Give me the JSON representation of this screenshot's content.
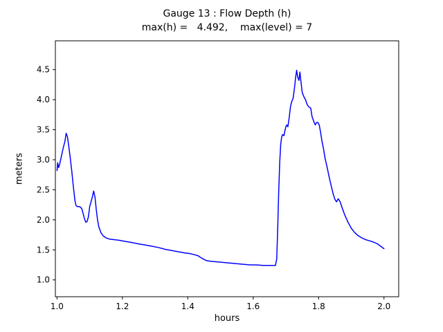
{
  "chart_data": {
    "type": "line",
    "title": "Gauge 13 : Flow Depth (h)",
    "subtitle": "max(h) =   4.492,    max(level) = 7",
    "xlabel": "hours",
    "ylabel": "meters",
    "max_h": 4.492,
    "max_level": 7,
    "xlim": [
      0.995,
      2.045
    ],
    "ylim": [
      0.72,
      4.98
    ],
    "xticks": [
      1.0,
      1.2,
      1.4,
      1.6,
      1.8,
      2.0
    ],
    "yticks": [
      1.0,
      1.5,
      2.0,
      2.5,
      3.0,
      3.5,
      4.0,
      4.5
    ],
    "grid": false,
    "legend": "none",
    "line_color": "#0000ff",
    "axis_color": "#000000",
    "series": [
      {
        "name": "h (flow depth)",
        "points": [
          [
            1.0,
            2.82
          ],
          [
            1.002,
            2.95
          ],
          [
            1.005,
            2.87
          ],
          [
            1.008,
            2.92
          ],
          [
            1.012,
            3.02
          ],
          [
            1.016,
            3.12
          ],
          [
            1.02,
            3.22
          ],
          [
            1.024,
            3.3
          ],
          [
            1.028,
            3.44
          ],
          [
            1.032,
            3.38
          ],
          [
            1.036,
            3.22
          ],
          [
            1.04,
            3.05
          ],
          [
            1.045,
            2.82
          ],
          [
            1.05,
            2.55
          ],
          [
            1.055,
            2.32
          ],
          [
            1.058,
            2.24
          ],
          [
            1.062,
            2.22
          ],
          [
            1.068,
            2.22
          ],
          [
            1.072,
            2.21
          ],
          [
            1.076,
            2.18
          ],
          [
            1.08,
            2.1
          ],
          [
            1.084,
            2.02
          ],
          [
            1.088,
            1.96
          ],
          [
            1.092,
            1.97
          ],
          [
            1.096,
            2.05
          ],
          [
            1.1,
            2.22
          ],
          [
            1.104,
            2.3
          ],
          [
            1.108,
            2.38
          ],
          [
            1.112,
            2.48
          ],
          [
            1.116,
            2.38
          ],
          [
            1.12,
            2.18
          ],
          [
            1.124,
            2.0
          ],
          [
            1.128,
            1.88
          ],
          [
            1.135,
            1.78
          ],
          [
            1.142,
            1.73
          ],
          [
            1.15,
            1.7
          ],
          [
            1.16,
            1.68
          ],
          [
            1.175,
            1.67
          ],
          [
            1.19,
            1.66
          ],
          [
            1.21,
            1.64
          ],
          [
            1.23,
            1.62
          ],
          [
            1.25,
            1.6
          ],
          [
            1.27,
            1.58
          ],
          [
            1.29,
            1.56
          ],
          [
            1.31,
            1.54
          ],
          [
            1.33,
            1.51
          ],
          [
            1.35,
            1.49
          ],
          [
            1.37,
            1.47
          ],
          [
            1.39,
            1.45
          ],
          [
            1.405,
            1.44
          ],
          [
            1.42,
            1.42
          ],
          [
            1.432,
            1.4
          ],
          [
            1.44,
            1.37
          ],
          [
            1.45,
            1.34
          ],
          [
            1.458,
            1.32
          ],
          [
            1.47,
            1.31
          ],
          [
            1.49,
            1.3
          ],
          [
            1.51,
            1.29
          ],
          [
            1.53,
            1.28
          ],
          [
            1.55,
            1.27
          ],
          [
            1.57,
            1.26
          ],
          [
            1.59,
            1.25
          ],
          [
            1.61,
            1.25
          ],
          [
            1.63,
            1.24
          ],
          [
            1.65,
            1.24
          ],
          [
            1.668,
            1.24
          ],
          [
            1.672,
            1.35
          ],
          [
            1.675,
            1.85
          ],
          [
            1.678,
            2.45
          ],
          [
            1.681,
            2.95
          ],
          [
            1.684,
            3.25
          ],
          [
            1.687,
            3.38
          ],
          [
            1.69,
            3.42
          ],
          [
            1.694,
            3.4
          ],
          [
            1.697,
            3.48
          ],
          [
            1.7,
            3.55
          ],
          [
            1.703,
            3.58
          ],
          [
            1.706,
            3.55
          ],
          [
            1.71,
            3.7
          ],
          [
            1.714,
            3.88
          ],
          [
            1.718,
            3.97
          ],
          [
            1.722,
            4.02
          ],
          [
            1.726,
            4.18
          ],
          [
            1.73,
            4.38
          ],
          [
            1.733,
            4.49
          ],
          [
            1.736,
            4.38
          ],
          [
            1.74,
            4.32
          ],
          [
            1.743,
            4.46
          ],
          [
            1.746,
            4.3
          ],
          [
            1.75,
            4.12
          ],
          [
            1.755,
            4.05
          ],
          [
            1.76,
            4.0
          ],
          [
            1.765,
            3.92
          ],
          [
            1.77,
            3.88
          ],
          [
            1.776,
            3.86
          ],
          [
            1.78,
            3.72
          ],
          [
            1.785,
            3.64
          ],
          [
            1.79,
            3.58
          ],
          [
            1.794,
            3.62
          ],
          [
            1.798,
            3.62
          ],
          [
            1.802,
            3.58
          ],
          [
            1.806,
            3.46
          ],
          [
            1.81,
            3.32
          ],
          [
            1.815,
            3.18
          ],
          [
            1.82,
            3.02
          ],
          [
            1.826,
            2.88
          ],
          [
            1.832,
            2.72
          ],
          [
            1.838,
            2.58
          ],
          [
            1.844,
            2.44
          ],
          [
            1.85,
            2.34
          ],
          [
            1.855,
            2.3
          ],
          [
            1.86,
            2.35
          ],
          [
            1.866,
            2.3
          ],
          [
            1.872,
            2.2
          ],
          [
            1.88,
            2.08
          ],
          [
            1.89,
            1.96
          ],
          [
            1.9,
            1.86
          ],
          [
            1.91,
            1.79
          ],
          [
            1.92,
            1.74
          ],
          [
            1.932,
            1.7
          ],
          [
            1.944,
            1.67
          ],
          [
            1.956,
            1.65
          ],
          [
            1.968,
            1.63
          ],
          [
            1.98,
            1.6
          ],
          [
            1.99,
            1.56
          ],
          [
            2.0,
            1.52
          ]
        ]
      }
    ]
  }
}
